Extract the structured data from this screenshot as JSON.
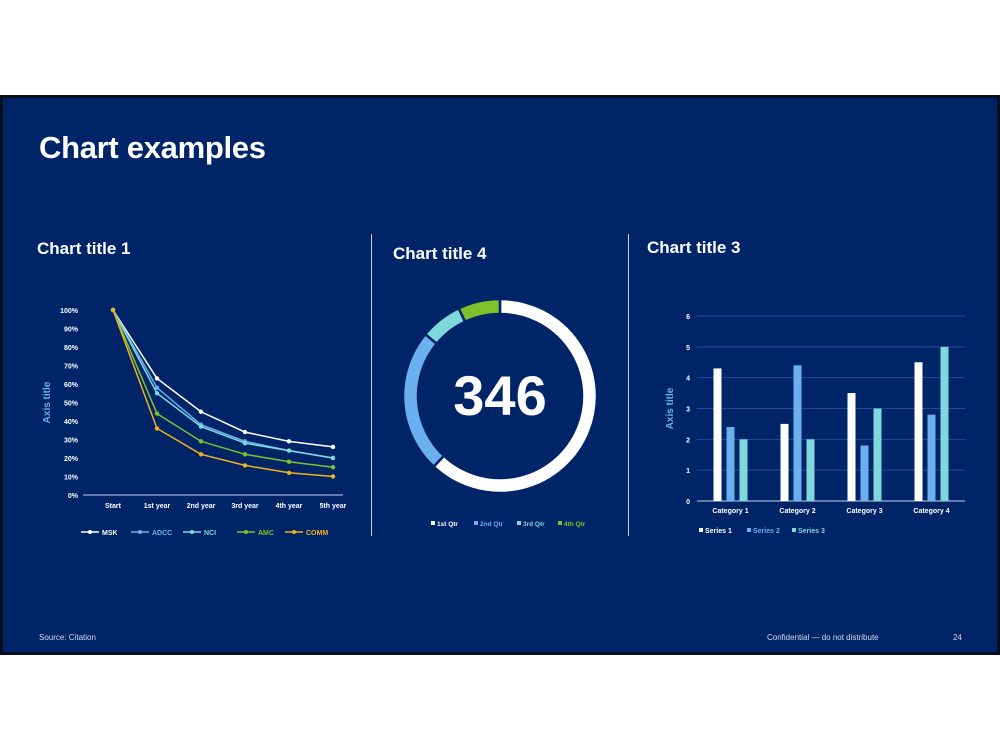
{
  "slide": {
    "title": "Chart examples",
    "source": "Source: Citation",
    "confidential": "Confidential — do not distribute",
    "page_number": "24"
  },
  "colors": {
    "background": "#002468",
    "white": "#ffffff",
    "light_blue": "#6ab0ef",
    "teal": "#7ed8dc",
    "green": "#7dc22c",
    "gold": "#f2b21c"
  },
  "chart_data": [
    {
      "type": "line",
      "title": "Chart title 1",
      "ylabel": "Axis title",
      "categories": [
        "Start",
        "1st year",
        "2nd year",
        "3rd year",
        "4th year",
        "5th year"
      ],
      "y_ticks": [
        "0%",
        "10%",
        "20%",
        "30%",
        "40%",
        "50%",
        "60%",
        "70%",
        "80%",
        "90%",
        "100%"
      ],
      "ylim": [
        0,
        100
      ],
      "series": [
        {
          "name": "MSK",
          "color": "#ffffff",
          "values": [
            100,
            63,
            45,
            34,
            29,
            26
          ]
        },
        {
          "name": "ADCC",
          "color": "#6ab0ef",
          "values": [
            100,
            58,
            38,
            29,
            24,
            20
          ]
        },
        {
          "name": "NCI",
          "color": "#7ed8dc",
          "values": [
            100,
            55,
            37,
            28,
            24,
            20
          ]
        },
        {
          "name": "AMC",
          "color": "#7dc22c",
          "values": [
            100,
            44,
            29,
            22,
            18,
            15
          ]
        },
        {
          "name": "COMM",
          "color": "#f2b21c",
          "values": [
            100,
            36,
            22,
            16,
            12,
            10
          ]
        }
      ],
      "legend_position": "bottom"
    },
    {
      "type": "pie",
      "title": "Chart title 4",
      "center_value": "346",
      "slices": [
        {
          "name": "1st Qtr",
          "color": "#ffffff",
          "value": 62
        },
        {
          "name": "2nd Qtr",
          "color": "#6ab0ef",
          "value": 24
        },
        {
          "name": "3rd Qtr",
          "color": "#7ed8dc",
          "value": 7
        },
        {
          "name": "4th Qtr",
          "color": "#7dc22c",
          "value": 7
        }
      ],
      "legend_position": "bottom"
    },
    {
      "type": "bar",
      "title": "Chart title 3",
      "ylabel": "Axis title",
      "categories": [
        "Category 1",
        "Category 2",
        "Category 3",
        "Category 4"
      ],
      "y_ticks": [
        "0",
        "1",
        "2",
        "3",
        "4",
        "5",
        "6"
      ],
      "ylim": [
        0,
        6
      ],
      "series": [
        {
          "name": "Series 1",
          "color": "#ffffff",
          "values": [
            4.3,
            2.5,
            3.5,
            4.5
          ]
        },
        {
          "name": "Series 2",
          "color": "#6ab0ef",
          "values": [
            2.4,
            4.4,
            1.8,
            2.8
          ]
        },
        {
          "name": "Series 3",
          "color": "#7ed8dc",
          "values": [
            2.0,
            2.0,
            3.0,
            5.0
          ]
        }
      ],
      "grid": true,
      "legend_position": "bottom"
    }
  ]
}
